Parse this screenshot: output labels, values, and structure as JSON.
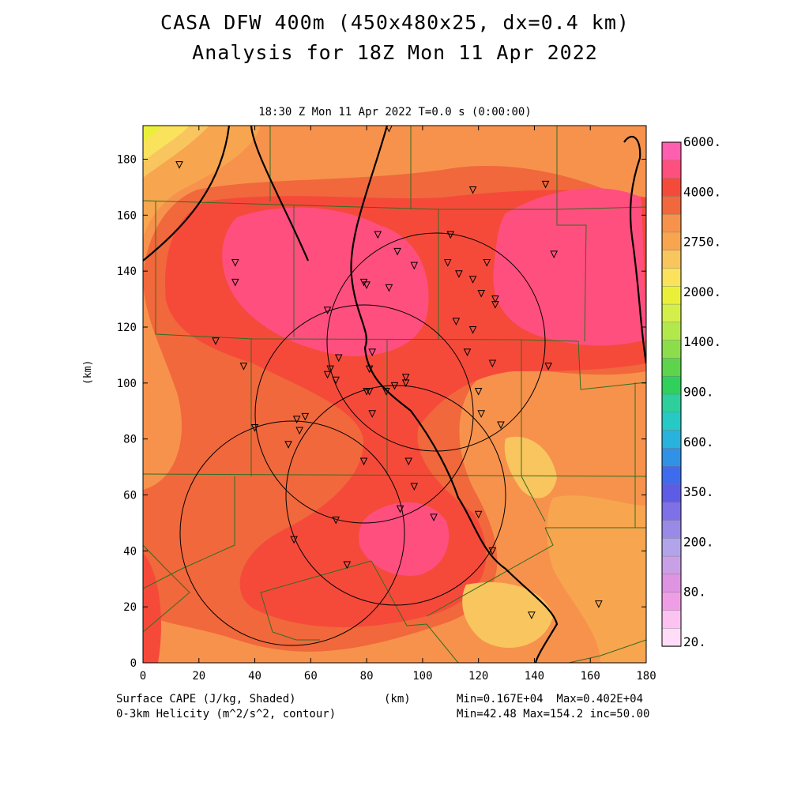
{
  "title_line1": "CASA DFW 400m (450x480x25, dx=0.4 km)",
  "title_line2": "Analysis for 18Z Mon 11 Apr 2022",
  "subtitle": "18:30 Z Mon 11 Apr 2022    T=0.0 s (0:00:00)",
  "axes": {
    "xlabel": "(km)",
    "ylabel": "(km)",
    "xlim": [
      0,
      180
    ],
    "ylim": [
      0,
      192
    ],
    "xticks": [
      0,
      20,
      40,
      60,
      80,
      100,
      120,
      140,
      160,
      180
    ],
    "yticks": [
      0,
      20,
      40,
      60,
      80,
      100,
      120,
      140,
      160,
      180
    ]
  },
  "colorbar": {
    "labels": [
      "6000.",
      "4000.",
      "2750.",
      "2000.",
      "1400.",
      "900.",
      "600.",
      "350.",
      "200.",
      "80.",
      "20."
    ],
    "colors": [
      "#ff5fae",
      "#ff4f7f",
      "#f54a3a",
      "#f0683c",
      "#f7924c",
      "#f7a54e",
      "#f8c55e",
      "#fae25c",
      "#eaf03a",
      "#d4ee4a",
      "#b3e84c",
      "#8cdd4c",
      "#5ed44c",
      "#2fd05c",
      "#2dd09a",
      "#26c9c4",
      "#28b2dc",
      "#2f92e6",
      "#3f6cec",
      "#5e5ce6",
      "#7e70e6",
      "#988ae6",
      "#b2a4ea",
      "#c9a0e6",
      "#de94e0",
      "#ef9ee6",
      "#fbc2f2",
      "#ffdcf8"
    ]
  },
  "footer": {
    "left1": "Surface CAPE (J/kg, Shaded)",
    "left2": "0-3km Helicity (m^2/s^2, contour)",
    "center": "(km)",
    "right1": "Min=0.167E+04  Max=0.402E+04",
    "right2": "Min=42.48 Max=154.2 inc=50.00"
  },
  "map_features": {
    "circles": [
      {
        "center_km": [
          102,
          116
        ],
        "radius_km": 39
      },
      {
        "center_km": [
          79,
          90
        ],
        "radius_km": 39
      },
      {
        "center_km": [
          92,
          62
        ],
        "radius_km": 39
      },
      {
        "center_km": [
          47,
          48
        ],
        "radius_km": 40
      }
    ],
    "stations_km": [
      [
        13,
        178
      ],
      [
        33,
        143
      ],
      [
        33,
        136
      ],
      [
        26,
        115
      ],
      [
        36,
        106
      ],
      [
        66,
        126
      ],
      [
        70,
        109
      ],
      [
        67,
        105
      ],
      [
        66,
        103
      ],
      [
        69,
        101
      ],
      [
        58,
        88
      ],
      [
        55,
        87
      ],
      [
        56,
        83
      ],
      [
        40,
        84
      ],
      [
        52,
        78
      ],
      [
        79,
        136
      ],
      [
        80,
        135
      ],
      [
        88,
        134
      ],
      [
        84,
        153
      ],
      [
        91,
        147
      ],
      [
        97,
        142
      ],
      [
        81,
        105
      ],
      [
        82,
        111
      ],
      [
        80,
        97
      ],
      [
        81,
        97
      ],
      [
        87,
        97
      ],
      [
        90,
        99
      ],
      [
        94,
        102
      ],
      [
        94,
        100
      ],
      [
        82,
        89
      ],
      [
        79,
        72
      ],
      [
        95,
        72
      ],
      [
        97,
        63
      ],
      [
        69,
        51
      ],
      [
        92,
        55
      ],
      [
        104,
        52
      ],
      [
        54,
        44
      ],
      [
        73,
        35
      ],
      [
        110,
        153
      ],
      [
        109,
        143
      ],
      [
        113,
        139
      ],
      [
        118,
        137
      ],
      [
        123,
        143
      ],
      [
        121,
        132
      ],
      [
        126,
        130
      ],
      [
        126,
        128
      ],
      [
        112,
        122
      ],
      [
        118,
        119
      ],
      [
        116,
        111
      ],
      [
        125,
        107
      ],
      [
        120,
        97
      ],
      [
        121,
        89
      ],
      [
        128,
        85
      ],
      [
        120,
        53
      ],
      [
        125,
        40
      ],
      [
        147,
        146
      ],
      [
        144,
        171
      ],
      [
        118,
        169
      ],
      [
        145,
        106
      ],
      [
        139,
        17
      ],
      [
        163,
        21
      ],
      [
        88,
        191
      ]
    ]
  }
}
